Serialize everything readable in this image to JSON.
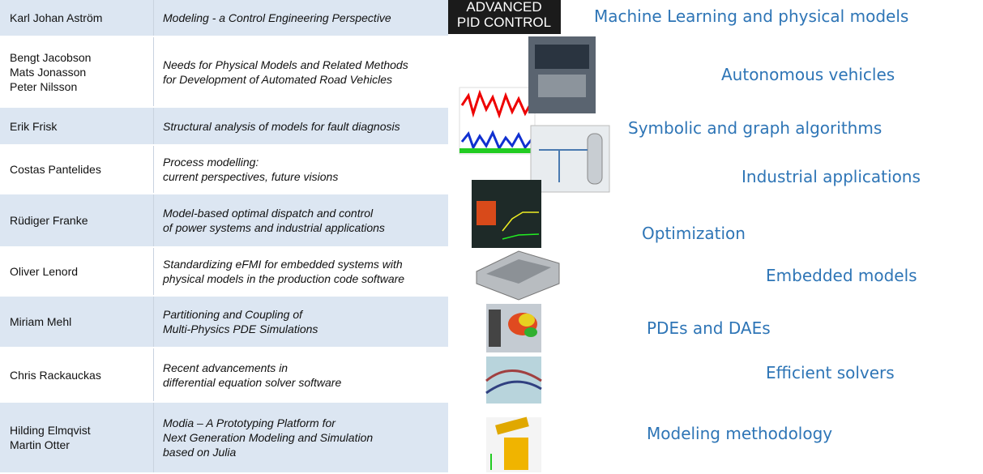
{
  "rows": [
    {
      "name": [
        "Karl Johan Aström"
      ],
      "title": [
        "Modeling  - a Control Engineering Perspective"
      ]
    },
    {
      "name": [
        "Bengt Jacobson",
        "Mats Jonasson",
        "Peter Nilsson"
      ],
      "title": [
        "Needs for Physical Models and Related Methods",
        "for Development of Automated Road Vehicles"
      ]
    },
    {
      "name": [
        "Erik Frisk"
      ],
      "title": [
        "Structural analysis of models for fault diagnosis"
      ]
    },
    {
      "name": [
        "Costas Pantelides"
      ],
      "title": [
        "Process modelling:",
        "current perspectives, future visions"
      ]
    },
    {
      "name": [
        "Rüdiger Franke"
      ],
      "title": [
        "Model-based optimal dispatch and control",
        "of power systems and industrial applications"
      ]
    },
    {
      "name": [
        "Oliver Lenord"
      ],
      "title": [
        "Standardizing eFMI for embedded systems with",
        "physical models in the production code software"
      ]
    },
    {
      "name": [
        "Miriam Mehl"
      ],
      "title": [
        "Partitioning and Coupling of",
        "Multi-Physics PDE Simulations"
      ]
    },
    {
      "name": [
        "Chris Rackauckas"
      ],
      "title": [
        "Recent advancements in",
        "differential equation solver software"
      ]
    },
    {
      "name": [
        "Hilding Elmqvist",
        "Martin Otter"
      ],
      "title": [
        "Modia – A Prototyping Platform for",
        "Next Generation Modeling and Simulation",
        "based on Julia"
      ]
    }
  ],
  "cover_text": [
    "ADVANCED",
    "PID CONTROL"
  ],
  "topics": [
    "Machine Learning and physical models",
    "Autonomous vehicles",
    "Symbolic and graph algorithms",
    "Industrial applications",
    "Optimization",
    "Embedded models",
    "PDEs and DAEs",
    "Efficient solvers",
    "Modeling methodology"
  ]
}
